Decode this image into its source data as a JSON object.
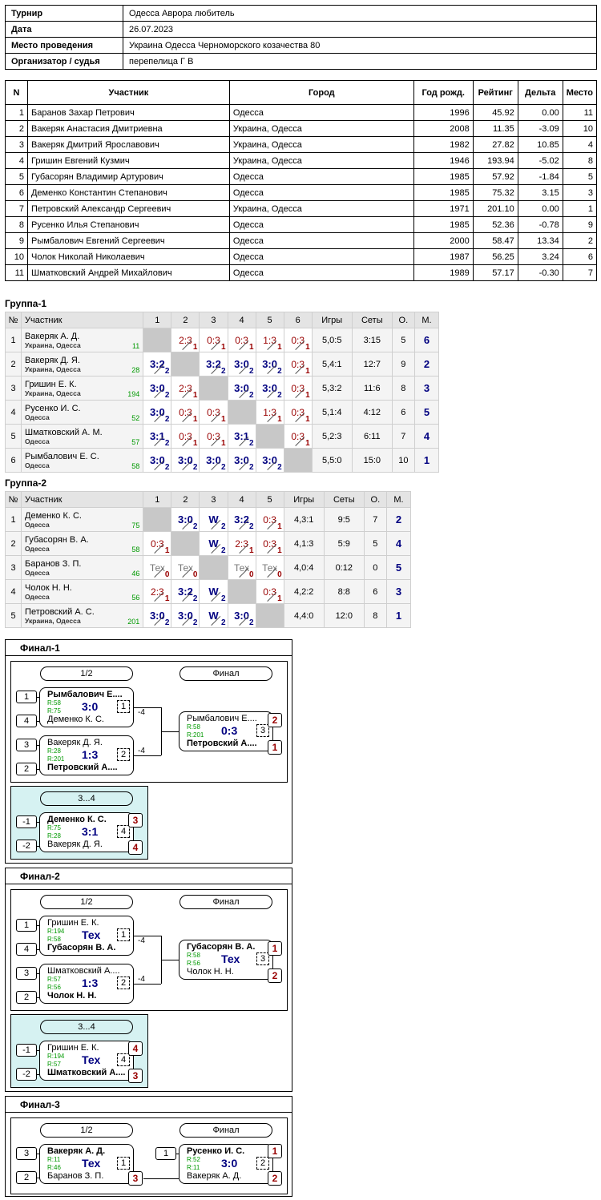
{
  "info": [
    {
      "k": "Турнир",
      "v": "Одесса Аврора любитель"
    },
    {
      "k": "Дата",
      "v": "26.07.2023"
    },
    {
      "k": "Место проведения",
      "v": "Украина  Одесса  Черноморского козачества 80"
    },
    {
      "k": "Организатор / судья",
      "v": "перепелица Г В"
    }
  ],
  "players_header": [
    "N",
    "Участник",
    "Город",
    "Год рожд.",
    "Рейтинг",
    "Дельта",
    "Место"
  ],
  "players": [
    [
      "1",
      "Баранов Захар Петрович",
      "Одесса",
      "1996",
      "45.92",
      "0.00",
      "11"
    ],
    [
      "2",
      "Вакеряк Анастасия Дмитриевна",
      "Украина, Одесса",
      "2008",
      "11.35",
      "-3.09",
      "10"
    ],
    [
      "3",
      "Вакеряк Дмитрий Ярославович",
      "Украина, Одесса",
      "1982",
      "27.82",
      "10.85",
      "4"
    ],
    [
      "4",
      "Гришин Евгений Кузмич",
      "Украина, Одесса",
      "1946",
      "193.94",
      "-5.02",
      "8"
    ],
    [
      "5",
      "Губасорян Владимир Артурович",
      "Одесса",
      "1985",
      "57.92",
      "-1.84",
      "5"
    ],
    [
      "6",
      "Деменко Константин Степанович",
      "Одесса",
      "1985",
      "75.32",
      "3.15",
      "3"
    ],
    [
      "7",
      "Петровский Александр Сергеевич",
      "Украина, Одесса",
      "1971",
      "201.10",
      "0.00",
      "1"
    ],
    [
      "8",
      "Русенко Илья Степанович",
      "Одесса",
      "1985",
      "52.36",
      "-0.78",
      "9"
    ],
    [
      "9",
      "Рымбалович Евгений Сергеевич",
      "Одесса",
      "2000",
      "58.47",
      "13.34",
      "2"
    ],
    [
      "10",
      "Чолок Николай Николаевич",
      "Одесса",
      "1987",
      "56.25",
      "3.24",
      "6"
    ],
    [
      "11",
      "Шматковский Андрей Михайлович",
      "Одесса",
      "1989",
      "57.17",
      "-0.30",
      "7"
    ]
  ],
  "group1": {
    "title": "Группа-1",
    "header": [
      "№",
      "Участник",
      "1",
      "2",
      "3",
      "4",
      "5",
      "6",
      "Игры",
      "Сеты",
      "О.",
      "М."
    ],
    "rows": [
      {
        "n": "1",
        "name": "Вакеряк А. Д.",
        "city": "Украина, Одесса",
        "rating": "11",
        "results": [
          null,
          [
            "2:3",
            "1"
          ],
          [
            "0:3",
            "1"
          ],
          [
            "0:3",
            "1"
          ],
          [
            "1:3",
            "1"
          ],
          [
            "0:3",
            "1"
          ]
        ],
        "games": "5,0:5",
        "sets": "3:15",
        "pts": "5",
        "place": "6"
      },
      {
        "n": "2",
        "name": "Вакеряк Д. Я.",
        "city": "Украина, Одесса",
        "rating": "28",
        "results": [
          [
            "3:2",
            "2"
          ],
          null,
          [
            "3:2",
            "2"
          ],
          [
            "3:0",
            "2"
          ],
          [
            "3:0",
            "2"
          ],
          [
            "0:3",
            "1"
          ]
        ],
        "games": "5,4:1",
        "sets": "12:7",
        "pts": "9",
        "place": "2"
      },
      {
        "n": "3",
        "name": "Гришин Е. К.",
        "city": "Украина, Одесса",
        "rating": "194",
        "results": [
          [
            "3:0",
            "2"
          ],
          [
            "2:3",
            "1"
          ],
          null,
          [
            "3:0",
            "2"
          ],
          [
            "3:0",
            "2"
          ],
          [
            "0:3",
            "1"
          ]
        ],
        "games": "5,3:2",
        "sets": "11:6",
        "pts": "8",
        "place": "3"
      },
      {
        "n": "4",
        "name": "Русенко И. С.",
        "city": "Одесса",
        "rating": "52",
        "results": [
          [
            "3:0",
            "2"
          ],
          [
            "0:3",
            "1"
          ],
          [
            "0:3",
            "1"
          ],
          null,
          [
            "1:3",
            "1"
          ],
          [
            "0:3",
            "1"
          ]
        ],
        "games": "5,1:4",
        "sets": "4:12",
        "pts": "6",
        "place": "5"
      },
      {
        "n": "5",
        "name": "Шматковский А. М.",
        "city": "Одесса",
        "rating": "57",
        "results": [
          [
            "3:1",
            "2"
          ],
          [
            "0:3",
            "1"
          ],
          [
            "0:3",
            "1"
          ],
          [
            "3:1",
            "2"
          ],
          null,
          [
            "0:3",
            "1"
          ]
        ],
        "games": "5,2:3",
        "sets": "6:11",
        "pts": "7",
        "place": "4"
      },
      {
        "n": "6",
        "name": "Рымбалович Е. С.",
        "city": "Одесса",
        "rating": "58",
        "results": [
          [
            "3:0",
            "2"
          ],
          [
            "3:0",
            "2"
          ],
          [
            "3:0",
            "2"
          ],
          [
            "3:0",
            "2"
          ],
          [
            "3:0",
            "2"
          ],
          null
        ],
        "games": "5,5:0",
        "sets": "15:0",
        "pts": "10",
        "place": "1"
      }
    ]
  },
  "group2": {
    "title": "Группа-2",
    "header": [
      "№",
      "Участник",
      "1",
      "2",
      "3",
      "4",
      "5",
      "Игры",
      "Сеты",
      "О.",
      "М."
    ],
    "rows": [
      {
        "n": "1",
        "name": "Деменко К. С.",
        "city": "Одесса",
        "rating": "75",
        "results": [
          null,
          [
            "3:0",
            "2"
          ],
          [
            "W",
            "2"
          ],
          [
            "3:2",
            "2"
          ],
          [
            "0:3",
            "1"
          ]
        ],
        "games": "4,3:1",
        "sets": "9:5",
        "pts": "7",
        "place": "2"
      },
      {
        "n": "2",
        "name": "Губасорян В. А.",
        "city": "Одесса",
        "rating": "58",
        "results": [
          [
            "0:3",
            "1"
          ],
          null,
          [
            "W",
            "2"
          ],
          [
            "2:3",
            "1"
          ],
          [
            "0:3",
            "1"
          ]
        ],
        "games": "4,1:3",
        "sets": "5:9",
        "pts": "5",
        "place": "4"
      },
      {
        "n": "3",
        "name": "Баранов З. П.",
        "city": "Одесса",
        "rating": "46",
        "results": [
          [
            "Тех",
            "0"
          ],
          [
            "Тех",
            "0"
          ],
          null,
          [
            "Тех",
            "0"
          ],
          [
            "Тех",
            "0"
          ]
        ],
        "games": "4,0:4",
        "sets": "0:12",
        "pts": "0",
        "place": "5"
      },
      {
        "n": "4",
        "name": "Чолок Н. Н.",
        "city": "Одесса",
        "rating": "56",
        "results": [
          [
            "2:3",
            "1"
          ],
          [
            "3:2",
            "2"
          ],
          [
            "W",
            "2"
          ],
          null,
          [
            "0:3",
            "1"
          ]
        ],
        "games": "4,2:2",
        "sets": "8:8",
        "pts": "6",
        "place": "3"
      },
      {
        "n": "5",
        "name": "Петровский А. С.",
        "city": "Украина, Одесса",
        "rating": "201",
        "results": [
          [
            "3:0",
            "2"
          ],
          [
            "3:0",
            "2"
          ],
          [
            "W",
            "2"
          ],
          [
            "3:0",
            "2"
          ],
          null
        ],
        "games": "4,4:0",
        "sets": "12:0",
        "pts": "8",
        "place": "1"
      }
    ]
  },
  "finals": [
    {
      "title": "Финал-1",
      "semi_label": "1/2",
      "final_label": "Финал",
      "cons_label": "3...4",
      "semi1": {
        "seed_top": "1",
        "seed_bot": "4",
        "top": "Рымбалович Е....",
        "bot": "Деменко К. С.",
        "rt": "R:58",
        "rb": "R:75",
        "score": "3:0",
        "num": "1",
        "loser": "-4",
        "top_bold": true
      },
      "semi2": {
        "seed_top": "3",
        "seed_bot": "2",
        "top": "Вакеряк Д. Я.",
        "bot": "Петровский А....",
        "rt": "R:28",
        "rb": "R:201",
        "score": "1:3",
        "num": "2",
        "loser": "-4",
        "top_bold": false
      },
      "final": {
        "top": "Рымбалович Е....",
        "bot": "Петровский А....",
        "rt": "R:58",
        "rb": "R:201",
        "score": "0:3",
        "num": "3",
        "place_top": "2",
        "place_bot": "1",
        "top_bold": false
      },
      "cons": {
        "seed_top": "-1",
        "seed_bot": "-2",
        "top": "Деменко К. С.",
        "bot": "Вакеряк Д. Я.",
        "rt": "R:75",
        "rb": "R:28",
        "score": "3:1",
        "num": "4",
        "place_top": "3",
        "place_bot": "4",
        "top_bold": true
      }
    },
    {
      "title": "Финал-2",
      "semi_label": "1/2",
      "final_label": "Финал",
      "cons_label": "3...4",
      "semi1": {
        "seed_top": "1",
        "seed_bot": "4",
        "top": "Гришин Е. К.",
        "bot": "Губасорян В. А.",
        "rt": "R:194",
        "rb": "R:58",
        "score": "Тех",
        "num": "1",
        "loser": "-4",
        "top_bold": false
      },
      "semi2": {
        "seed_top": "3",
        "seed_bot": "2",
        "top": "Шматковский А....",
        "bot": "Чолок Н. Н.",
        "rt": "R:57",
        "rb": "R:56",
        "score": "1:3",
        "num": "2",
        "loser": "-4",
        "top_bold": false
      },
      "final": {
        "top": "Губасорян В. А.",
        "bot": "Чолок Н. Н.",
        "rt": "R:58",
        "rb": "R:56",
        "score": "Тех",
        "num": "3",
        "place_top": "1",
        "place_bot": "2",
        "top_bold": true
      },
      "cons": {
        "seed_top": "-1",
        "seed_bot": "-2",
        "top": "Гришин Е. К.",
        "bot": "Шматковский А....",
        "rt": "R:194",
        "rb": "R:57",
        "score": "Тех",
        "num": "4",
        "place_top": "4",
        "place_bot": "3",
        "top_bold": false
      }
    },
    {
      "title": "Финал-3",
      "semi_label": "1/2",
      "final_label": "Финал",
      "semi1": {
        "seed_top": "3",
        "seed_bot": "2",
        "top": "Вакеряк А. Д.",
        "bot": "Баранов З. П.",
        "rt": "R:11",
        "rb": "R:46",
        "score": "Тех",
        "num": "1",
        "place_bot": "3",
        "top_bold": true
      },
      "final": {
        "seed_top": "1",
        "top": "Русенко И. С.",
        "bot": "Вакеряк А. Д.",
        "rt": "R:52",
        "rb": "R:11",
        "score": "3:0",
        "num": "2",
        "place_top": "1",
        "place_bot": "2",
        "top_bold": true
      }
    }
  ]
}
